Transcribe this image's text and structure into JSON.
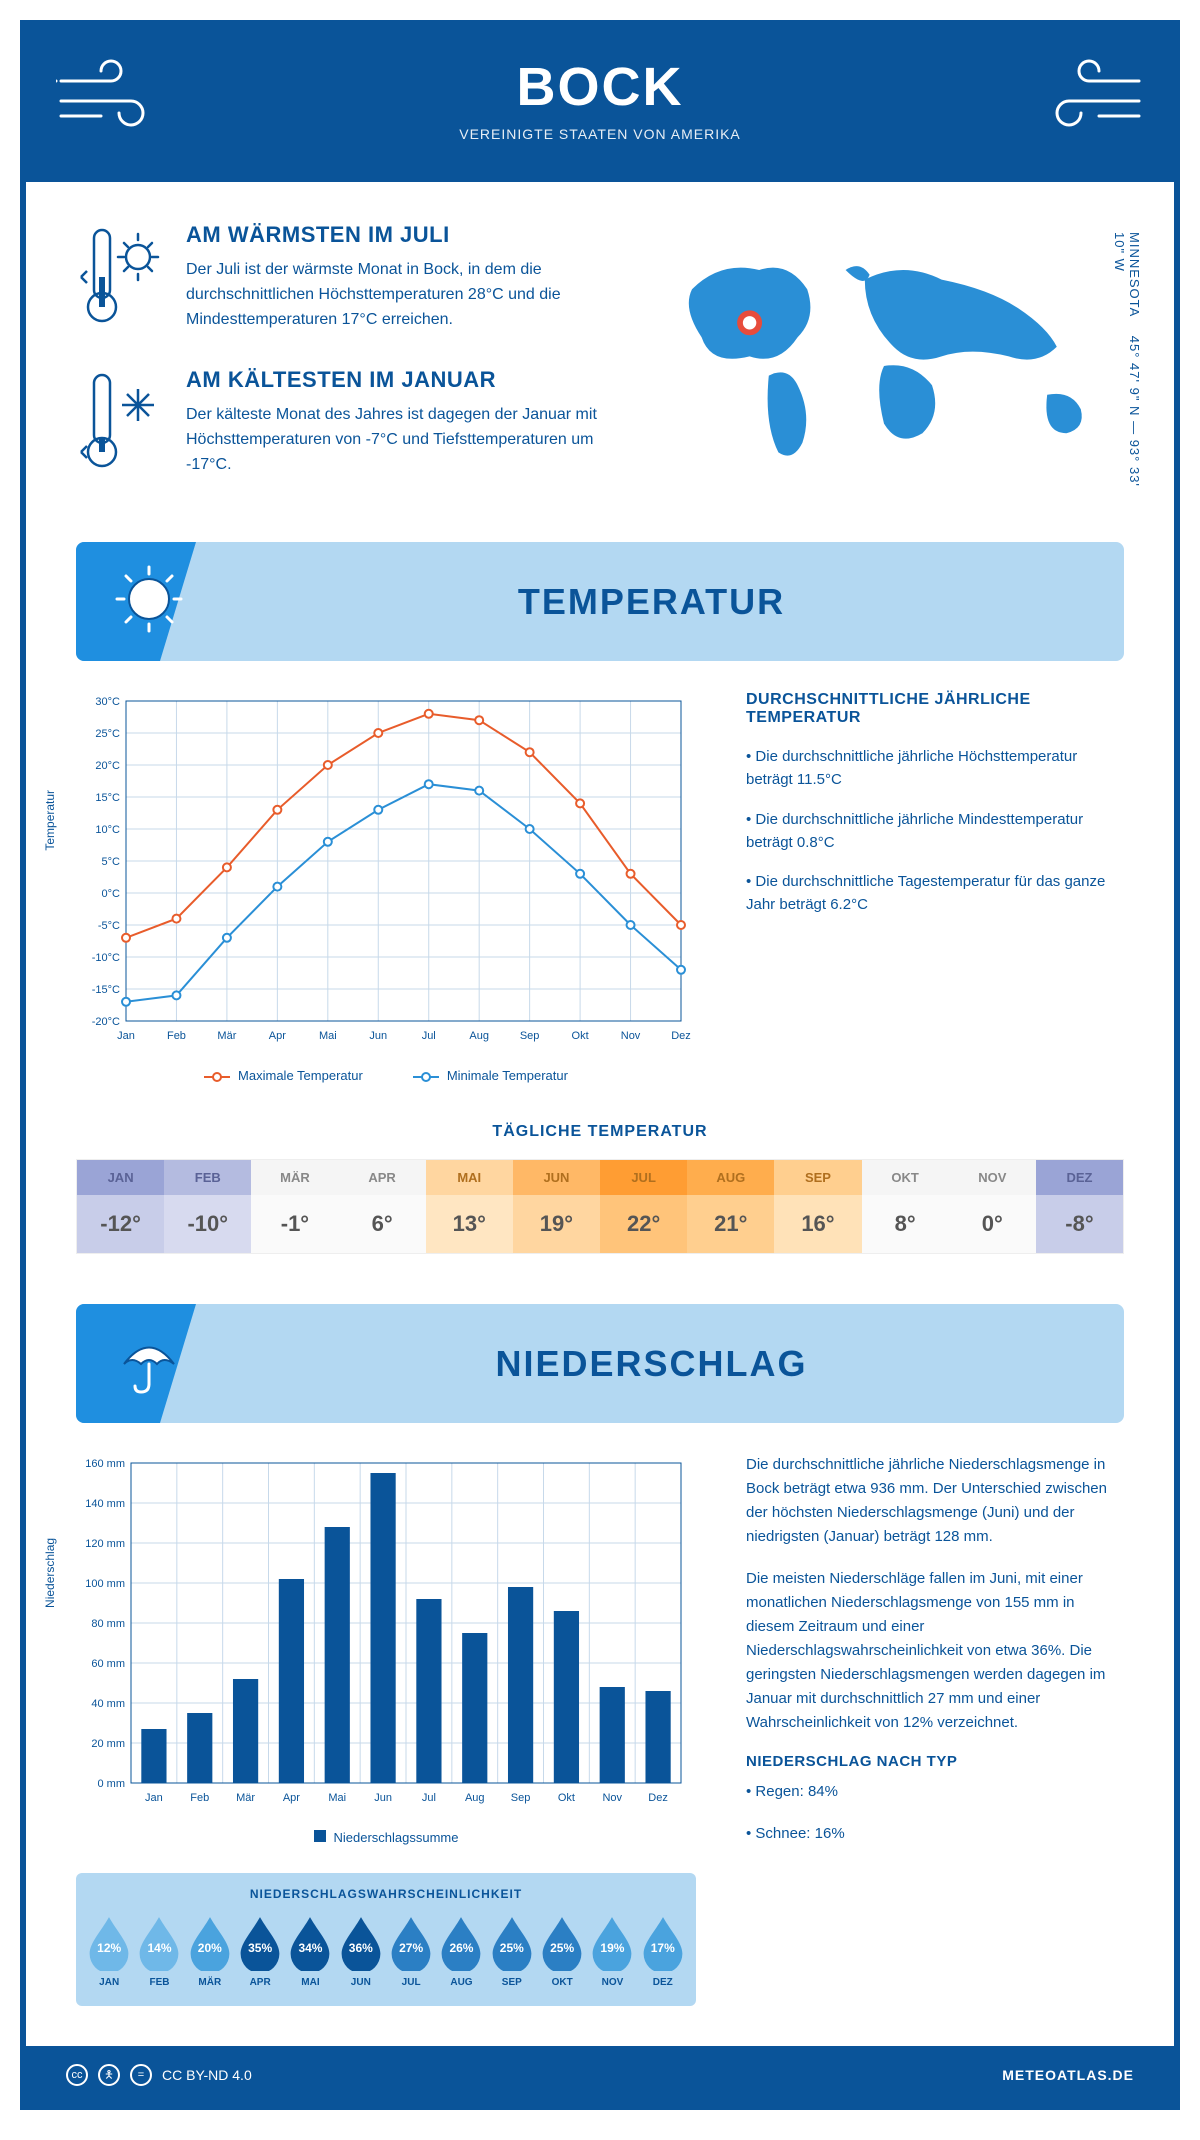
{
  "header": {
    "title": "BOCK",
    "subtitle": "VEREINIGTE STAATEN VON AMERIKA"
  },
  "coords": {
    "lat": "45° 47' 9\" N",
    "lon": "93° 33' 10\" W",
    "region": "MINNESOTA"
  },
  "facts": {
    "warm": {
      "title": "AM WÄRMSTEN IM JULI",
      "text": "Der Juli ist der wärmste Monat in Bock, in dem die durchschnittlichen Höchsttemperaturen 28°C und die Mindesttemperaturen 17°C erreichen."
    },
    "cold": {
      "title": "AM KÄLTESTEN IM JANUAR",
      "text": "Der kälteste Monat des Jahres ist dagegen der Januar mit Höchsttemperaturen von -7°C und Tiefsttemperaturen um -17°C."
    }
  },
  "sections": {
    "temp": "TEMPERATUR",
    "precip": "NIEDERSCHLAG"
  },
  "months": [
    "Jan",
    "Feb",
    "Mär",
    "Apr",
    "Mai",
    "Jun",
    "Jul",
    "Aug",
    "Sep",
    "Okt",
    "Nov",
    "Dez"
  ],
  "months_uc": [
    "JAN",
    "FEB",
    "MÄR",
    "APR",
    "MAI",
    "JUN",
    "JUL",
    "AUG",
    "SEP",
    "OKT",
    "NOV",
    "DEZ"
  ],
  "temp_chart": {
    "ylabel": "Temperatur",
    "ylim": [
      -20,
      30
    ],
    "ytick_step": 5,
    "max_series": {
      "label": "Maximale Temperatur",
      "color": "#e85c2b",
      "values": [
        -7,
        -4,
        4,
        13,
        20,
        25,
        28,
        27,
        22,
        14,
        3,
        -5
      ]
    },
    "min_series": {
      "label": "Minimale Temperatur",
      "color": "#2a8fd6",
      "values": [
        -17,
        -16,
        -7,
        1,
        8,
        13,
        17,
        16,
        10,
        3,
        -5,
        -12
      ]
    },
    "grid_color": "#c7d9ea",
    "bg": "#ffffff",
    "marker": "circle",
    "line_width": 2
  },
  "temp_notes": {
    "heading": "DURCHSCHNITTLICHE JÄHRLICHE TEMPERATUR",
    "l1": "• Die durchschnittliche jährliche Höchsttemperatur beträgt 11.5°C",
    "l2": "• Die durchschnittliche jährliche Mindesttemperatur beträgt 0.8°C",
    "l3": "• Die durchschnittliche Tagestemperatur für das ganze Jahr beträgt 6.2°C"
  },
  "daily": {
    "heading": "TÄGLICHE TEMPERATUR",
    "values": [
      "-12°",
      "-10°",
      "-1°",
      "6°",
      "13°",
      "19°",
      "22°",
      "21°",
      "16°",
      "8°",
      "0°",
      "-8°"
    ],
    "head_colors": [
      "#9aa4d6",
      "#b4bbe0",
      "#f5f5f5",
      "#f5f5f5",
      "#ffd6a0",
      "#ffb866",
      "#ff9d33",
      "#ffad4d",
      "#ffcf8f",
      "#f5f5f5",
      "#f5f5f5",
      "#9aa4d6"
    ],
    "body_colors": [
      "#c8cde9",
      "#d7daef",
      "#fafafa",
      "#fafafa",
      "#ffe6c2",
      "#ffd6a0",
      "#ffc47a",
      "#ffcf8f",
      "#ffe2b8",
      "#fafafa",
      "#fafafa",
      "#c8cde9"
    ],
    "text_colors": [
      "#5a6296",
      "#5a6296",
      "#888",
      "#888",
      "#b06f1e",
      "#b06f1e",
      "#b06f1e",
      "#b06f1e",
      "#b06f1e",
      "#888",
      "#888",
      "#5a6296"
    ]
  },
  "precip_chart": {
    "ylabel": "Niederschlag",
    "ylim": [
      0,
      160
    ],
    "ytick_step": 20,
    "values": [
      27,
      35,
      52,
      102,
      128,
      155,
      92,
      75,
      98,
      86,
      48,
      46
    ],
    "bar_color": "#0a5499",
    "grid_color": "#c7d9ea",
    "legend": "Niederschlagssumme"
  },
  "precip_text": {
    "p1": "Die durchschnittliche jährliche Niederschlagsmenge in Bock beträgt etwa 936 mm. Der Unterschied zwischen der höchsten Niederschlagsmenge (Juni) und der niedrigsten (Januar) beträgt 128 mm.",
    "p2": "Die meisten Niederschläge fallen im Juni, mit einer monatlichen Niederschlagsmenge von 155 mm in diesem Zeitraum und einer Niederschlagswahrscheinlichkeit von etwa 36%. Die geringsten Niederschlagsmengen werden dagegen im Januar mit durchschnittlich 27 mm und einer Wahrscheinlichkeit von 12% verzeichnet.",
    "type_heading": "NIEDERSCHLAG NACH TYP",
    "rain": "• Regen: 84%",
    "snow": "• Schnee: 16%"
  },
  "prob": {
    "heading": "NIEDERSCHLAGSWAHRSCHEINLICHKEIT",
    "values": [
      "12%",
      "14%",
      "20%",
      "35%",
      "34%",
      "36%",
      "27%",
      "26%",
      "25%",
      "25%",
      "19%",
      "17%"
    ],
    "colors": [
      "#6fb8e8",
      "#6fb8e8",
      "#4aa3de",
      "#0a5499",
      "#0a5499",
      "#0a5499",
      "#2b7fc4",
      "#2b7fc4",
      "#2b7fc4",
      "#2b7fc4",
      "#4aa3de",
      "#4aa3de"
    ]
  },
  "footer": {
    "license": "CC BY-ND 4.0",
    "site": "METEOATLAS.DE"
  },
  "colors": {
    "brand": "#0a5499",
    "light": "#b3d8f2",
    "accent": "#1f8fe0"
  }
}
